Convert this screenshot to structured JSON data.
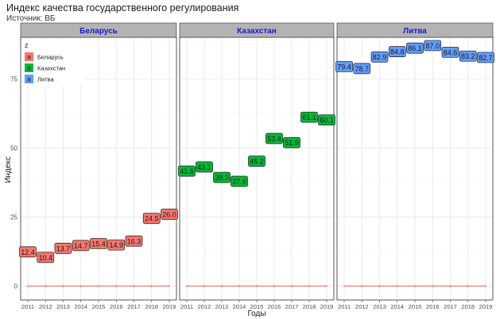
{
  "title": "Индекс качества государственного регулирования",
  "subtitle": "Источник: ВБ",
  "colors": {
    "Беларусь": "#f8766d",
    "Казахстан": "#00ba38",
    "Литва": "#619cff",
    "strip_bg": "#b3b3b3",
    "strip_text": "#1a1acd",
    "grid": "#e6e6e6"
  },
  "chart_data": {
    "type": "line",
    "xlabel": "Годы",
    "ylabel": "Индекс",
    "x": [
      2011,
      2012,
      2013,
      2014,
      2015,
      2016,
      2017,
      2018,
      2019
    ],
    "ylim": [
      -5,
      90
    ],
    "yticks": [
      0,
      25,
      50,
      75
    ],
    "facets": [
      "Беларусь",
      "Казахстан",
      "Литва"
    ],
    "legend_title": "z",
    "legend_position": "top-left",
    "grid": true,
    "series": [
      {
        "name": "Беларусь",
        "values": [
          12.4,
          10.4,
          13.7,
          14.7,
          15.4,
          14.9,
          16.3,
          24.5,
          26.0
        ],
        "labels": [
          "12.4",
          "10.4",
          "13.7",
          "14.7",
          "15.4",
          "14.9",
          "16.3",
          "24.5",
          "26.0"
        ]
      },
      {
        "name": "Казахстан",
        "values": [
          41.6,
          43.1,
          39.3,
          37.9,
          45.2,
          53.4,
          51.9,
          61.1,
          60.1
        ],
        "labels": [
          "41.6",
          "43.1",
          "39.3",
          "37.9",
          "45.2",
          "53.4",
          "51.9",
          "61.1",
          "60.1"
        ]
      },
      {
        "name": "Литва",
        "values": [
          79.4,
          78.7,
          82.9,
          84.8,
          86.1,
          87.0,
          84.6,
          83.2,
          82.7
        ],
        "labels": [
          "79.4",
          "78.7",
          "82.9",
          "84.8",
          "86.1",
          "87.0",
          "84.6",
          "83.2",
          "82.7"
        ]
      }
    ],
    "baseline_value": 0
  }
}
